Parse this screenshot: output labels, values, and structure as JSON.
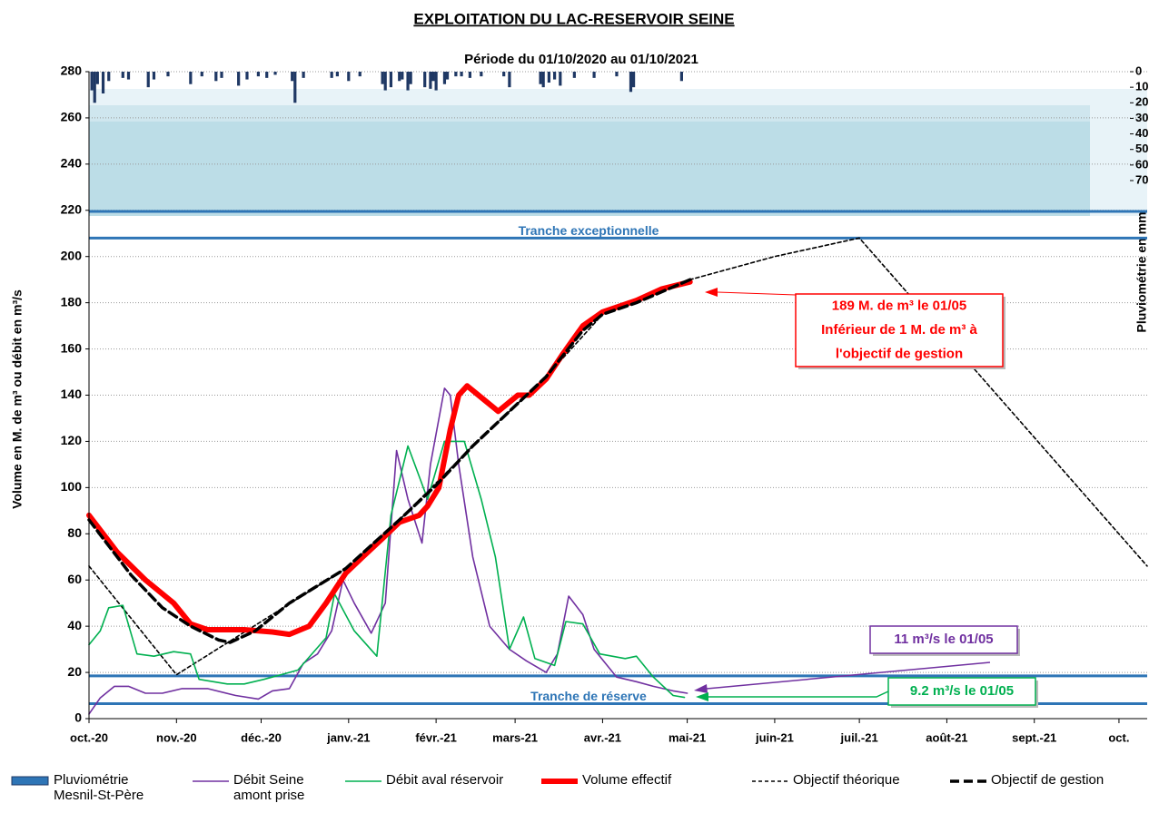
{
  "chart_data": {
    "type": "line",
    "title": "EXPLOITATION  DU  LAC-RESERVOIR  SEINE",
    "subtitle": "Période du 01/10/2020 au 01/10/2021",
    "y_label": "Volume en M. de m³ ou débit en m³/s",
    "y2_label": "Pluviométrie en mm",
    "xlim": [
      0,
      375
    ],
    "xticks": [
      {
        "value": 0,
        "label": "oct.-20"
      },
      {
        "value": 31,
        "label": "nov.-20"
      },
      {
        "value": 61,
        "label": "déc.-20"
      },
      {
        "value": 92,
        "label": "janv.-21"
      },
      {
        "value": 123,
        "label": "févr.-21"
      },
      {
        "value": 151,
        "label": "mars-21"
      },
      {
        "value": 182,
        "label": "avr.-21"
      },
      {
        "value": 212,
        "label": "mai-21"
      },
      {
        "value": 243,
        "label": "juin-21"
      },
      {
        "value": 273,
        "label": "juil.-21"
      },
      {
        "value": 304,
        "label": "août-21"
      },
      {
        "value": 335,
        "label": "sept.-21"
      },
      {
        "value": 365,
        "label": "oct."
      }
    ],
    "ylim": [
      0,
      280
    ],
    "yticks": [
      0,
      20,
      40,
      60,
      80,
      100,
      120,
      140,
      160,
      180,
      200,
      220,
      240,
      260,
      280
    ],
    "y2lim": [
      0,
      70
    ],
    "y2ticks": [
      0,
      10,
      20,
      30,
      40,
      50,
      60,
      70
    ],
    "grid": true,
    "reference_lines": [
      {
        "value": 219.5,
        "color": "#2e75b6"
      },
      {
        "value": 208,
        "color": "#2e75b6",
        "label": "Tranche exceptionnelle"
      },
      {
        "value": 18.5,
        "color": "#2e75b6"
      },
      {
        "value": 6.5,
        "color": "#2e75b6",
        "label": "Tranche de réserve"
      }
    ],
    "series": [
      {
        "name": "Pluviométrie Mesnil-St-Père",
        "type": "bar",
        "axis": "y2",
        "color": "#1f3864",
        "x": [
          1,
          2,
          3,
          5,
          7,
          12,
          14,
          21,
          23,
          28,
          36,
          40,
          45,
          47,
          53,
          56,
          60,
          63,
          66,
          72,
          73,
          76,
          86,
          88,
          92,
          96,
          104,
          105,
          107,
          110,
          111,
          113,
          114,
          119,
          121,
          122,
          123,
          126,
          127,
          130,
          132,
          135,
          139,
          147,
          149,
          160,
          161,
          163,
          165,
          167,
          172,
          179,
          187,
          192,
          193,
          210
        ],
        "values": [
          12,
          20,
          8,
          14,
          6,
          4,
          5,
          10,
          5,
          3,
          8,
          3,
          6,
          4,
          9,
          5,
          3,
          4,
          2,
          6,
          20,
          4,
          4,
          3,
          6,
          3,
          8,
          12,
          10,
          6,
          5,
          12,
          8,
          10,
          11,
          6,
          12,
          8,
          5,
          3,
          3,
          4,
          3,
          3,
          10,
          8,
          10,
          7,
          5,
          9,
          4,
          4,
          3,
          13,
          10,
          6
        ]
      },
      {
        "name": "Débit Seine amont prise",
        "type": "line",
        "line_style": "solid",
        "color": "#7030a0",
        "x": [
          0,
          4,
          9,
          14,
          20,
          26,
          33,
          42,
          52,
          60,
          65,
          71,
          76,
          81,
          86,
          90,
          94,
          100,
          105,
          109,
          113,
          118,
          121,
          126,
          128,
          131,
          136,
          142,
          149,
          155,
          162,
          166,
          170,
          175,
          179,
          187,
          194,
          200,
          207,
          212
        ],
        "values": [
          2,
          9,
          14,
          14,
          11,
          11,
          13,
          13,
          10,
          8.5,
          12,
          13,
          24,
          28,
          38,
          60,
          50,
          37,
          50,
          116,
          95,
          76,
          110,
          143,
          140,
          110,
          70,
          40,
          30,
          25,
          20,
          28,
          53,
          45,
          30,
          18,
          16,
          14,
          12,
          11
        ]
      },
      {
        "name": "Débit aval réservoir",
        "type": "line",
        "line_style": "solid",
        "color": "#00b050",
        "x": [
          0,
          4,
          7,
          12,
          17,
          23,
          30,
          36,
          39,
          49,
          55,
          62,
          68,
          74,
          84,
          87,
          94,
          102,
          107,
          113,
          120,
          126,
          133,
          139,
          144,
          149,
          154,
          158,
          165,
          169,
          175,
          181,
          190,
          194,
          200,
          207,
          211
        ],
        "values": [
          32,
          38,
          48,
          49,
          28,
          27,
          29,
          28,
          17,
          15,
          15,
          17,
          19,
          21,
          35,
          54,
          38,
          27,
          88,
          118,
          95,
          120,
          120,
          95,
          70,
          30,
          44,
          26,
          23,
          42,
          41,
          28,
          26,
          27,
          18,
          10,
          9.2
        ]
      },
      {
        "name": "Volume effectif",
        "type": "line",
        "line_style": "thick",
        "color": "#ff0000",
        "x": [
          0,
          10,
          20,
          30,
          36,
          42,
          55,
          65,
          71,
          78,
          84,
          91,
          97,
          104,
          110,
          117,
          120,
          124,
          128,
          131,
          134,
          139,
          145,
          152,
          156,
          162,
          168,
          175,
          182,
          194,
          203,
          213
        ],
        "values": [
          88,
          72,
          60,
          50,
          41,
          38.5,
          38.5,
          37.5,
          36.5,
          40,
          50,
          63,
          70,
          78,
          85,
          88,
          92,
          100,
          125,
          140,
          144,
          139,
          133,
          140,
          140,
          147,
          158,
          170,
          176,
          181,
          186,
          189
        ]
      },
      {
        "name": "Objectif théorique",
        "type": "line",
        "line_style": "dashed",
        "color": "#000000",
        "x": [
          0,
          31,
          91,
          110,
          136,
          162,
          182,
          213,
          243,
          273,
          375
        ],
        "values": [
          66,
          19,
          65,
          86,
          118,
          148,
          175,
          190,
          200,
          208,
          66
        ]
      },
      {
        "name": "Objectif de gestion",
        "type": "line",
        "line_style": "thick-dashed",
        "color": "#000000",
        "x": [
          0,
          5,
          15,
          26,
          36,
          46,
          50,
          59,
          71,
          91,
          110,
          123,
          136,
          149,
          162,
          175,
          182,
          194,
          213
        ],
        "values": [
          86,
          78,
          62,
          48,
          40,
          34,
          33,
          38,
          50,
          65,
          86,
          101,
          118,
          133,
          148,
          168,
          175,
          180,
          190
        ]
      }
    ],
    "annotations": [
      {
        "lines": [
          "189 M. de m³ le 01/05",
          "Inférieur de 1 M. de m³ à",
          "l'objectif de gestion"
        ],
        "color": "#ff0000"
      },
      {
        "lines": [
          "11 m³/s le 01/05"
        ],
        "color": "#7030a0"
      },
      {
        "lines": [
          "9.2 m³/s le 01/05"
        ],
        "color": "#00b050"
      }
    ]
  }
}
